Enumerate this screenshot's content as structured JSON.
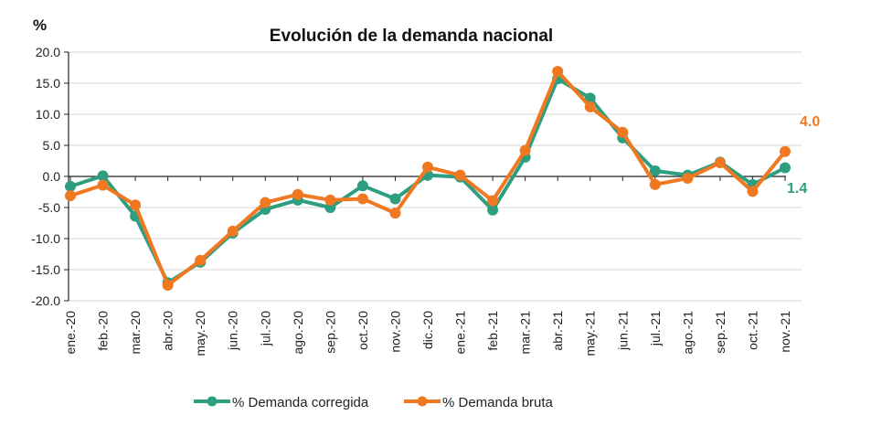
{
  "chart_data": {
    "type": "line",
    "title": "Evolución de la demanda nacional",
    "ylabel": "%",
    "xlabel": "",
    "ylim": [
      -20,
      20
    ],
    "yticks": [
      "20.0",
      "15.0",
      "10.0",
      "5.0",
      "0.0",
      "-5.0",
      "-10.0",
      "-15.0",
      "-20.0"
    ],
    "ytick_values": [
      20,
      15,
      10,
      5,
      0,
      -5,
      -10,
      -15,
      -20
    ],
    "grid": true,
    "legend_position": "bottom",
    "categories": [
      "ene.-20",
      "feb.-20",
      "mar.-20",
      "abr.-20",
      "may.-20",
      "jun.-20",
      "jul.-20",
      "ago.-20",
      "sep.-20",
      "oct.-20",
      "nov.-20",
      "dic.-20",
      "ene.-21",
      "feb.-21",
      "mar.-21",
      "abr.-21",
      "may.-21",
      "jun.-21",
      "jul.-21",
      "ago.-21",
      "sep.-21",
      "oct.-21",
      "nov.-21"
    ],
    "series": [
      {
        "name": "% Demanda corregida",
        "color": "#2E9E80",
        "values": [
          -1.6,
          0.1,
          -6.4,
          -17.1,
          -13.8,
          -9.1,
          -5.3,
          -3.8,
          -5.0,
          -1.5,
          -3.6,
          0.2,
          -0.1,
          -5.4,
          3.1,
          15.7,
          12.6,
          6.2,
          0.9,
          0.2,
          2.3,
          -1.3,
          1.4
        ],
        "last_label": "1.4"
      },
      {
        "name": "% Demanda bruta",
        "color": "#F07820",
        "values": [
          -3.1,
          -1.4,
          -4.6,
          -17.5,
          -13.5,
          -8.8,
          -4.2,
          -2.9,
          -3.8,
          -3.6,
          -5.9,
          1.5,
          0.2,
          -3.9,
          4.2,
          16.9,
          11.2,
          7.1,
          -1.3,
          -0.3,
          2.2,
          -2.4,
          4.0
        ],
        "last_label": "4.0"
      }
    ]
  }
}
